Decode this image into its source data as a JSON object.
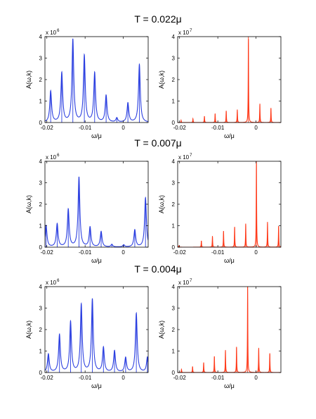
{
  "rows": [
    {
      "title": "T = 0.022μ",
      "panels": [
        {
          "ylabel": "A(ω,k)",
          "xlabel": "ω/μ",
          "exp_base": "x 10",
          "exp_power": "6",
          "color": "#2b3fe0",
          "xlim": [
            -0.0205,
            0.0065
          ],
          "ylim": [
            0,
            4
          ],
          "xticks": [
            {
              "v": -0.02,
              "label": "-0.02"
            },
            {
              "v": -0.01,
              "label": "-0.01"
            },
            {
              "v": 0,
              "label": "0"
            }
          ],
          "yticks": [
            {
              "v": 0,
              "label": "0"
            },
            {
              "v": 1,
              "label": "1"
            },
            {
              "v": 2,
              "label": "2"
            },
            {
              "v": 3,
              "label": "3"
            },
            {
              "v": 4,
              "label": "4"
            }
          ],
          "peaks": [
            {
              "x": -0.019,
              "y": 1.45
            },
            {
              "x": -0.0161,
              "y": 2.3
            },
            {
              "x": -0.0132,
              "y": 3.85
            },
            {
              "x": -0.0102,
              "y": 3.1
            },
            {
              "x": -0.0075,
              "y": 2.3
            },
            {
              "x": -0.0045,
              "y": 1.25
            },
            {
              "x": -0.0017,
              "y": 0.2
            },
            {
              "x": 0.0012,
              "y": 0.9
            },
            {
              "x": 0.0042,
              "y": 2.7
            }
          ],
          "width": 0.00028
        },
        {
          "ylabel": "A(ω,k)",
          "xlabel": "ω/μ",
          "exp_base": "x 10",
          "exp_power": "7",
          "color": "#ff3a1a",
          "xlim": [
            -0.0205,
            0.0065
          ],
          "ylim": [
            0,
            4
          ],
          "xticks": [
            {
              "v": -0.02,
              "label": "-0.02"
            },
            {
              "v": -0.01,
              "label": "-0.01"
            },
            {
              "v": 0,
              "label": "0"
            }
          ],
          "yticks": [
            {
              "v": 0,
              "label": "0"
            },
            {
              "v": 1,
              "label": "1"
            },
            {
              "v": 2,
              "label": "2"
            },
            {
              "v": 3,
              "label": "3"
            },
            {
              "v": 4,
              "label": "4"
            }
          ],
          "peaks": [
            {
              "x": -0.0196,
              "y": 0.1
            },
            {
              "x": -0.0165,
              "y": 0.18
            },
            {
              "x": -0.0135,
              "y": 0.3
            },
            {
              "x": -0.0107,
              "y": 0.42
            },
            {
              "x": -0.0078,
              "y": 0.55
            },
            {
              "x": -0.0049,
              "y": 0.6
            },
            {
              "x": -0.002,
              "y": 4.0
            },
            {
              "x": 0.001,
              "y": 0.88
            },
            {
              "x": 0.0039,
              "y": 0.68
            }
          ],
          "width": 6e-05
        }
      ]
    },
    {
      "title": "T = 0.007μ",
      "panels": [
        {
          "ylabel": "A(ω,k)",
          "xlabel": "ω/μ",
          "exp_base": "x 10",
          "exp_power": "6",
          "color": "#2b3fe0",
          "xlim": [
            -0.0205,
            0.0065
          ],
          "ylim": [
            0,
            4
          ],
          "xticks": [
            {
              "v": -0.02,
              "label": "-0.02"
            },
            {
              "v": -0.01,
              "label": "-0.01"
            },
            {
              "v": 0,
              "label": "0"
            }
          ],
          "yticks": [
            {
              "v": 0,
              "label": "0"
            },
            {
              "v": 1,
              "label": "1"
            },
            {
              "v": 2,
              "label": "2"
            },
            {
              "v": 3,
              "label": "3"
            },
            {
              "v": 4,
              "label": "4"
            }
          ],
          "peaks": [
            {
              "x": -0.0202,
              "y": 1.0
            },
            {
              "x": -0.0173,
              "y": 1.08
            },
            {
              "x": -0.0144,
              "y": 1.75
            },
            {
              "x": -0.0116,
              "y": 3.25
            },
            {
              "x": -0.0087,
              "y": 0.92
            },
            {
              "x": -0.0058,
              "y": 0.72
            },
            {
              "x": -0.003,
              "y": 0.12
            },
            {
              "x": 0.0001,
              "y": 0.1
            },
            {
              "x": 0.003,
              "y": 0.8
            },
            {
              "x": 0.0058,
              "y": 2.3
            }
          ],
          "width": 0.00028
        },
        {
          "ylabel": "A(ω,k)",
          "xlabel": "ω/μ",
          "exp_base": "x 10",
          "exp_power": "7",
          "color": "#ff3a1a",
          "xlim": [
            -0.0205,
            0.0065
          ],
          "ylim": [
            0,
            4
          ],
          "xticks": [
            {
              "v": -0.02,
              "label": "-0.02"
            },
            {
              "v": -0.01,
              "label": "-0.01"
            },
            {
              "v": 0,
              "label": "0"
            }
          ],
          "yticks": [
            {
              "v": 0,
              "label": "0"
            },
            {
              "v": 1,
              "label": "1"
            },
            {
              "v": 2,
              "label": "2"
            },
            {
              "v": 3,
              "label": "3"
            },
            {
              "v": 4,
              "label": "4"
            }
          ],
          "peaks": [
            {
              "x": -0.0202,
              "y": 0.06
            },
            {
              "x": -0.0143,
              "y": 0.3
            },
            {
              "x": -0.0114,
              "y": 0.52
            },
            {
              "x": -0.0085,
              "y": 0.75
            },
            {
              "x": -0.0056,
              "y": 0.95
            },
            {
              "x": -0.0027,
              "y": 1.1
            },
            {
              "x": 0.0001,
              "y": 4.0
            },
            {
              "x": 0.003,
              "y": 1.18
            },
            {
              "x": 0.0059,
              "y": 0.98
            }
          ],
          "width": 6e-05
        }
      ]
    },
    {
      "title": "T = 0.004μ",
      "panels": [
        {
          "ylabel": "A(ω,k)",
          "xlabel": "ω/μ",
          "exp_base": "x 10",
          "exp_power": "6",
          "color": "#2b3fe0",
          "xlim": [
            -0.0205,
            0.0065
          ],
          "ylim": [
            0,
            4
          ],
          "xticks": [
            {
              "v": -0.02,
              "label": "-0.02"
            },
            {
              "v": -0.01,
              "label": "-0.01"
            },
            {
              "v": 0,
              "label": "0"
            }
          ],
          "yticks": [
            {
              "v": 0,
              "label": "0"
            },
            {
              "v": 1,
              "label": "1"
            },
            {
              "v": 2,
              "label": "2"
            },
            {
              "v": 3,
              "label": "3"
            },
            {
              "v": 4,
              "label": "4"
            }
          ],
          "peaks": [
            {
              "x": -0.0196,
              "y": 0.85
            },
            {
              "x": -0.0167,
              "y": 1.75
            },
            {
              "x": -0.0138,
              "y": 2.35
            },
            {
              "x": -0.011,
              "y": 3.15
            },
            {
              "x": -0.0081,
              "y": 3.4
            },
            {
              "x": -0.0052,
              "y": 1.15
            },
            {
              "x": -0.0023,
              "y": 1.0
            },
            {
              "x": 0.0006,
              "y": 0.68
            },
            {
              "x": 0.0034,
              "y": 2.75
            },
            {
              "x": 0.0063,
              "y": 0.7
            }
          ],
          "width": 0.00028
        },
        {
          "ylabel": "A(ω,k)",
          "xlabel": "ω/μ",
          "exp_base": "x 10",
          "exp_power": "7",
          "color": "#ff3a1a",
          "xlim": [
            -0.0205,
            0.0065
          ],
          "ylim": [
            0,
            4
          ],
          "xticks": [
            {
              "v": -0.02,
              "label": "-0.02"
            },
            {
              "v": -0.01,
              "label": "-0.01"
            },
            {
              "v": 0,
              "label": "0"
            }
          ],
          "yticks": [
            {
              "v": 0,
              "label": "0"
            },
            {
              "v": 1,
              "label": "1"
            },
            {
              "v": 2,
              "label": "2"
            },
            {
              "v": 3,
              "label": "3"
            },
            {
              "v": 4,
              "label": "4"
            }
          ],
          "peaks": [
            {
              "x": -0.0195,
              "y": 0.15
            },
            {
              "x": -0.0166,
              "y": 0.28
            },
            {
              "x": -0.0137,
              "y": 0.47
            },
            {
              "x": -0.0109,
              "y": 0.75
            },
            {
              "x": -0.008,
              "y": 1.05
            },
            {
              "x": -0.0051,
              "y": 1.2
            },
            {
              "x": -0.0022,
              "y": 4.0
            },
            {
              "x": 0.0007,
              "y": 1.15
            },
            {
              "x": 0.0036,
              "y": 0.9
            }
          ],
          "width": 6e-05
        }
      ]
    }
  ],
  "chart_data": [
    {
      "type": "line",
      "title": "T = 0.022μ",
      "xlabel": "ω/μ",
      "ylabel": "A(ω,k)",
      "scale": "x 10^6",
      "xlim": [
        -0.0205,
        0.0065
      ],
      "ylim": [
        0,
        4
      ],
      "series": [
        {
          "x": [
            -0.019,
            -0.0161,
            -0.0132,
            -0.0102,
            -0.0075,
            -0.0045,
            -0.0017,
            0.0012,
            0.0042
          ],
          "y": [
            1.45,
            2.3,
            3.85,
            3.1,
            2.3,
            1.25,
            0.2,
            0.9,
            2.7
          ]
        }
      ]
    },
    {
      "type": "line",
      "title": "T = 0.022μ",
      "xlabel": "ω/μ",
      "ylabel": "A(ω,k)",
      "scale": "x 10^7",
      "xlim": [
        -0.0205,
        0.0065
      ],
      "ylim": [
        0,
        4
      ],
      "series": [
        {
          "x": [
            -0.0196,
            -0.0165,
            -0.0135,
            -0.0107,
            -0.0078,
            -0.0049,
            -0.002,
            0.001,
            0.0039
          ],
          "y": [
            0.1,
            0.18,
            0.3,
            0.42,
            0.55,
            0.6,
            4.0,
            0.88,
            0.68
          ]
        }
      ]
    },
    {
      "type": "line",
      "title": "T = 0.007μ",
      "xlabel": "ω/μ",
      "ylabel": "A(ω,k)",
      "scale": "x 10^6",
      "xlim": [
        -0.0205,
        0.0065
      ],
      "ylim": [
        0,
        4
      ],
      "series": [
        {
          "x": [
            -0.0202,
            -0.0173,
            -0.0144,
            -0.0116,
            -0.0087,
            -0.0058,
            -0.003,
            0.0001,
            0.003,
            0.0058
          ],
          "y": [
            1.0,
            1.08,
            1.75,
            3.25,
            0.92,
            0.72,
            0.12,
            0.1,
            0.8,
            2.3
          ]
        }
      ]
    },
    {
      "type": "line",
      "title": "T = 0.007μ",
      "xlabel": "ω/μ",
      "ylabel": "A(ω,k)",
      "scale": "x 10^7",
      "xlim": [
        -0.0205,
        0.0065
      ],
      "ylim": [
        0,
        4
      ],
      "series": [
        {
          "x": [
            -0.0202,
            -0.0143,
            -0.0114,
            -0.0085,
            -0.0056,
            -0.0027,
            0.0001,
            0.003,
            0.0059
          ],
          "y": [
            0.06,
            0.3,
            0.52,
            0.75,
            0.95,
            1.1,
            4.0,
            1.18,
            0.98
          ]
        }
      ]
    },
    {
      "type": "line",
      "title": "T = 0.004μ",
      "xlabel": "ω/μ",
      "ylabel": "A(ω,k)",
      "scale": "x 10^6",
      "xlim": [
        -0.0205,
        0.0065
      ],
      "ylim": [
        0,
        4
      ],
      "series": [
        {
          "x": [
            -0.0196,
            -0.0167,
            -0.0138,
            -0.011,
            -0.0081,
            -0.0052,
            -0.0023,
            0.0006,
            0.0034,
            0.0063
          ],
          "y": [
            0.85,
            1.75,
            2.35,
            3.15,
            3.4,
            1.15,
            1.0,
            0.68,
            2.75,
            0.7
          ]
        }
      ]
    },
    {
      "type": "line",
      "title": "T = 0.004μ",
      "xlabel": "ω/μ",
      "ylabel": "A(ω,k)",
      "scale": "x 10^7",
      "xlim": [
        -0.0205,
        0.0065
      ],
      "ylim": [
        0,
        4
      ],
      "series": [
        {
          "x": [
            -0.0195,
            -0.0166,
            -0.0137,
            -0.0109,
            -0.008,
            -0.0051,
            -0.0022,
            0.0007,
            0.0036
          ],
          "y": [
            0.15,
            0.28,
            0.47,
            0.75,
            1.05,
            1.2,
            4.0,
            1.15,
            0.9
          ]
        }
      ]
    }
  ]
}
